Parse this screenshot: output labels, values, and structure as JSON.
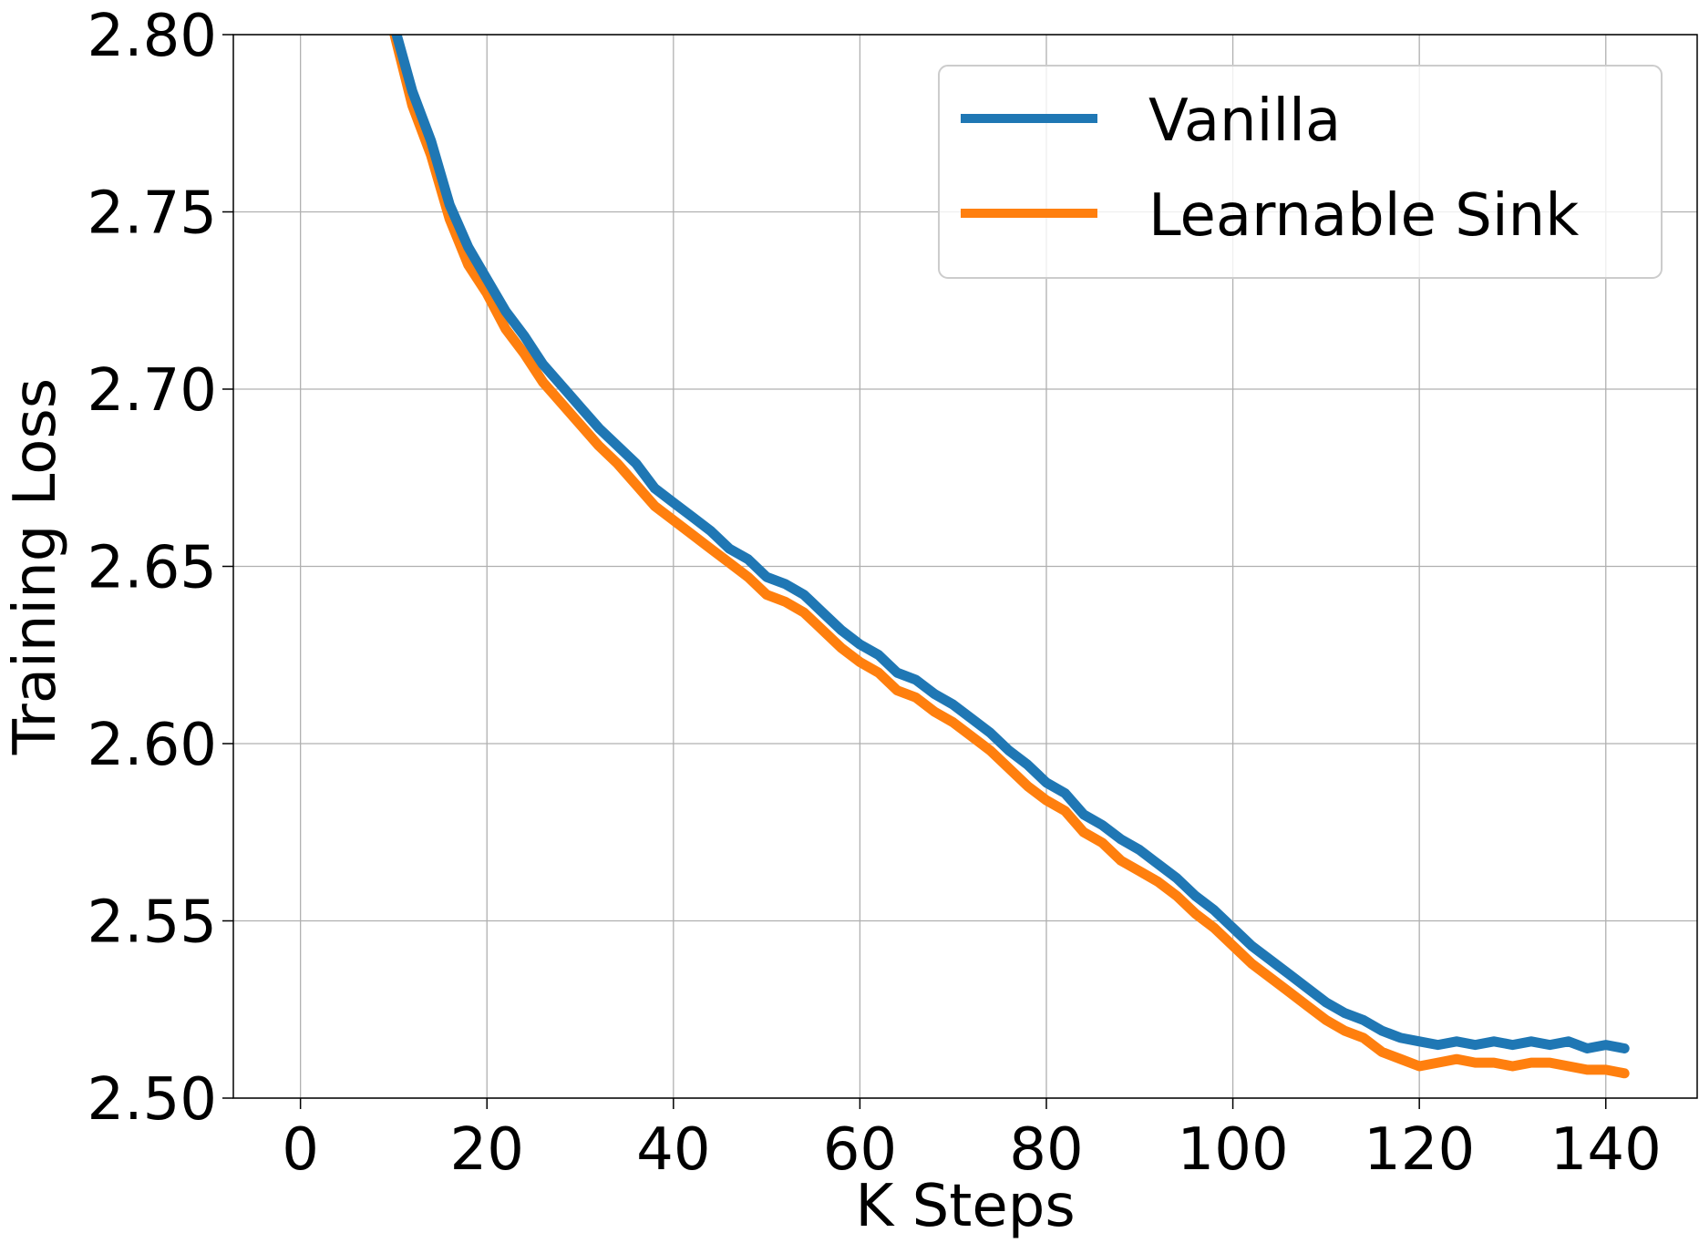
{
  "chart_data": {
    "type": "line",
    "title": "",
    "xlabel": "K Steps",
    "ylabel": "Training Loss",
    "xlim": [
      -7.2,
      149.8
    ],
    "ylim": [
      2.5,
      2.8
    ],
    "xticks": [
      0,
      20,
      40,
      60,
      80,
      100,
      120,
      140
    ],
    "xtick_labels": [
      "0",
      "20",
      "40",
      "60",
      "80",
      "100",
      "120",
      "140"
    ],
    "yticks": [
      2.5,
      2.55,
      2.6,
      2.65,
      2.7,
      2.75,
      2.8
    ],
    "ytick_labels": [
      "2.50",
      "2.55",
      "2.60",
      "2.65",
      "2.70",
      "2.75",
      "2.80"
    ],
    "grid": true,
    "legend_position": "top-right",
    "series": [
      {
        "name": "Vanilla",
        "color": "#1f77b4",
        "x": [
          10,
          12,
          14,
          16,
          18,
          20,
          22,
          24,
          26,
          28,
          30,
          32,
          34,
          36,
          38,
          40,
          42,
          44,
          46,
          48,
          50,
          52,
          54,
          56,
          58,
          60,
          62,
          64,
          66,
          68,
          70,
          72,
          74,
          76,
          78,
          80,
          82,
          84,
          86,
          88,
          90,
          92,
          94,
          96,
          98,
          100,
          102,
          104,
          106,
          108,
          110,
          112,
          114,
          116,
          118,
          120,
          122,
          124,
          126,
          128,
          130,
          132,
          134,
          136,
          138,
          140,
          142
        ],
        "y": [
          2.803,
          2.784,
          2.77,
          2.752,
          2.74,
          2.731,
          2.722,
          2.715,
          2.707,
          2.701,
          2.695,
          2.689,
          2.684,
          2.679,
          2.672,
          2.668,
          2.664,
          2.66,
          2.655,
          2.652,
          2.647,
          2.645,
          2.642,
          2.637,
          2.632,
          2.628,
          2.625,
          2.62,
          2.618,
          2.614,
          2.611,
          2.607,
          2.603,
          2.598,
          2.594,
          2.589,
          2.586,
          2.58,
          2.577,
          2.573,
          2.57,
          2.566,
          2.562,
          2.557,
          2.553,
          2.548,
          2.543,
          2.539,
          2.535,
          2.531,
          2.527,
          2.524,
          2.522,
          2.519,
          2.517,
          2.516,
          2.515,
          2.516,
          2.515,
          2.516,
          2.515,
          2.516,
          2.515,
          2.516,
          2.514,
          2.515,
          2.514
        ]
      },
      {
        "name": "Learnable Sink",
        "color": "#ff7f0e",
        "x": [
          10,
          12,
          14,
          16,
          18,
          20,
          22,
          24,
          26,
          28,
          30,
          32,
          34,
          36,
          38,
          40,
          42,
          44,
          46,
          48,
          50,
          52,
          54,
          56,
          58,
          60,
          62,
          64,
          66,
          68,
          70,
          72,
          74,
          76,
          78,
          80,
          82,
          84,
          86,
          88,
          90,
          92,
          94,
          96,
          98,
          100,
          102,
          104,
          106,
          108,
          110,
          112,
          114,
          116,
          118,
          120,
          122,
          124,
          126,
          128,
          130,
          132,
          134,
          136,
          138,
          140,
          142
        ],
        "y": [
          2.801,
          2.78,
          2.766,
          2.748,
          2.735,
          2.727,
          2.717,
          2.71,
          2.702,
          2.696,
          2.69,
          2.684,
          2.679,
          2.673,
          2.667,
          2.663,
          2.659,
          2.655,
          2.651,
          2.647,
          2.642,
          2.64,
          2.637,
          2.632,
          2.627,
          2.623,
          2.62,
          2.615,
          2.613,
          2.609,
          2.606,
          2.602,
          2.598,
          2.593,
          2.588,
          2.584,
          2.581,
          2.575,
          2.572,
          2.567,
          2.564,
          2.561,
          2.557,
          2.552,
          2.548,
          2.543,
          2.538,
          2.534,
          2.53,
          2.526,
          2.522,
          2.519,
          2.517,
          2.513,
          2.511,
          2.509,
          2.51,
          2.511,
          2.51,
          2.51,
          2.509,
          2.51,
          2.51,
          2.509,
          2.508,
          2.508,
          2.507
        ]
      }
    ]
  }
}
